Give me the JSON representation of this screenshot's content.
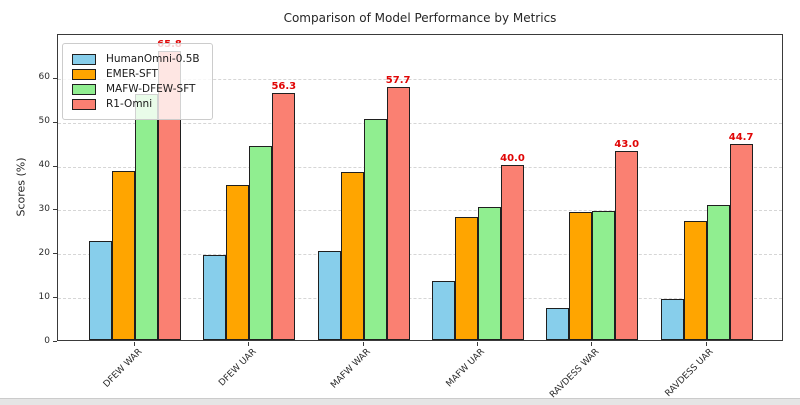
{
  "chart_data": {
    "type": "bar",
    "title": "Comparison of Model Performance by Metrics",
    "xlabel": "",
    "ylabel": "Scores (%)",
    "ylim": [
      0,
      70
    ],
    "yticks": [
      0,
      10,
      20,
      30,
      40,
      50,
      60
    ],
    "grid": true,
    "grid_style": "dashed",
    "legend_position": "upper-left",
    "categories": [
      "DFEW WAR",
      "DFEW UAR",
      "MAFW WAR",
      "MAFW UAR",
      "RAVDESS WAR",
      "RAVDESS UAR"
    ],
    "series": [
      {
        "name": "HumanOmni-0.5B",
        "color": "#87CEEB",
        "values": [
          22.6,
          19.4,
          20.2,
          13.5,
          7.3,
          9.4
        ]
      },
      {
        "name": "EMER-SFT",
        "color": "#FFA500",
        "values": [
          38.6,
          35.3,
          38.4,
          28.0,
          29.3,
          27.1
        ]
      },
      {
        "name": "MAFW-DFEW-SFT",
        "color": "#90EE90",
        "values": [
          56.1,
          44.3,
          50.4,
          30.4,
          29.5,
          30.8
        ]
      },
      {
        "name": "R1-Omni",
        "color": "#FA8072",
        "values": [
          65.8,
          56.3,
          57.7,
          40.0,
          43.0,
          44.7
        ],
        "labels": [
          "65.8",
          "56.3",
          "57.7",
          "40.0",
          "43.0",
          "44.7"
        ],
        "label_color": "#e00505"
      }
    ]
  }
}
